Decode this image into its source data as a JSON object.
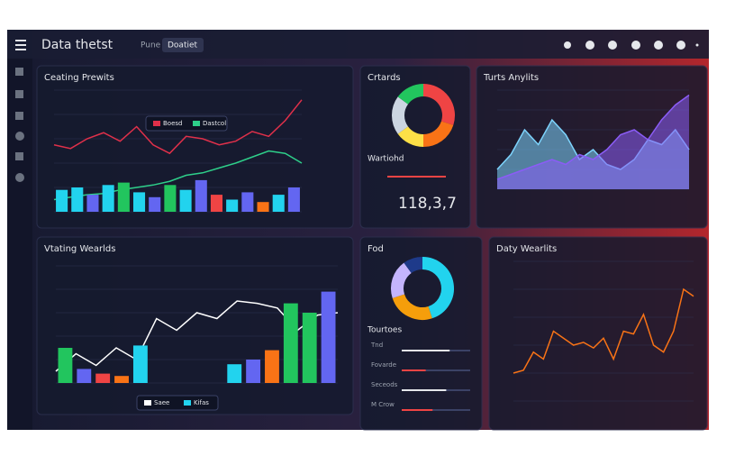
{
  "header": {
    "title": "Data thetst",
    "tabs": [
      "Pune",
      "Doatiet"
    ]
  },
  "panels": [
    {
      "title": "Ceating Prewits",
      "chart": {
        "type": "bar-line",
        "ylim": [
          0,
          100
        ],
        "legend": [
          "Boesd",
          "Dastcol"
        ],
        "series": [
          {
            "name": "Boesd",
            "kind": "line",
            "color": "#e0304a",
            "values": [
              55,
              52,
              60,
              65,
              58,
              70,
              55,
              48,
              62,
              60,
              55,
              58,
              66,
              62,
              75,
              92
            ]
          },
          {
            "name": "Dastcol",
            "kind": "line",
            "color": "#2ecf8a",
            "values": [
              10,
              12,
              14,
              15,
              18,
              20,
              22,
              25,
              30,
              32,
              36,
              40,
              45,
              50,
              48,
              40
            ]
          },
          {
            "kind": "bar",
            "colors": [
              "#22d3ee",
              "#22d3ee",
              "#6366f1",
              "#22d3ee",
              "#22c55e",
              "#22d3ee",
              "#6366f1",
              "#22c55e",
              "#22d3ee",
              "#6366f1",
              "#ef4444",
              "#22d3ee",
              "#6366f1",
              "#f97316",
              "#22d3ee",
              "#6366f1"
            ],
            "values": [
              18,
              20,
              14,
              22,
              24,
              16,
              12,
              22,
              18,
              26,
              14,
              10,
              16,
              8,
              14,
              20
            ]
          }
        ]
      }
    },
    {
      "title": "Crtards",
      "chart": {
        "type": "donut",
        "colors": [
          "#ef4444",
          "#f97316",
          "#fde047",
          "#cbd5e1",
          "#22c55e"
        ],
        "values": [
          30,
          20,
          15,
          20,
          15
        ]
      },
      "subtitle": "Wartiohd",
      "kpi": "118,3,7"
    },
    {
      "title": "Turts Anylits",
      "chart": {
        "type": "area",
        "ylim": [
          0,
          100
        ],
        "series": [
          {
            "color": "#7dd3fc",
            "values": [
              20,
              35,
              60,
              45,
              70,
              55,
              30,
              40,
              25,
              20,
              30,
              50,
              45,
              60,
              40
            ]
          },
          {
            "color": "#8b5cf6",
            "values": [
              10,
              15,
              20,
              25,
              30,
              25,
              35,
              30,
              40,
              55,
              60,
              50,
              70,
              85,
              95
            ]
          }
        ]
      }
    },
    {
      "title": "Vtating Wearlds",
      "chart": {
        "type": "bar-line",
        "ylim": [
          0,
          100
        ],
        "legend": [
          "Saee",
          "Kifas"
        ],
        "series": [
          {
            "name": "Saee",
            "kind": "line",
            "color": "#ffffff",
            "values": [
              10,
              25,
              15,
              30,
              20,
              55,
              45,
              60,
              55,
              70,
              68,
              64,
              45,
              58,
              60
            ]
          },
          {
            "kind": "bar",
            "colors": [
              "#22c55e",
              "#6366f1",
              "#ef4444",
              "#f97316",
              "#22d3ee",
              "#ef4444",
              "#ef4444",
              "#22c55e",
              "#22c55e",
              "#22d3ee",
              "#6366f1",
              "#f97316",
              "#22c55e",
              "#22c55e",
              "#6366f1"
            ],
            "values": [
              30,
              12,
              8,
              6,
              32,
              0,
              0,
              0,
              0,
              16,
              20,
              28,
              68,
              60,
              78
            ]
          }
        ]
      }
    },
    {
      "title": "Fod",
      "chart": {
        "type": "donut",
        "colors": [
          "#22d3ee",
          "#f59e0b",
          "#c4b5fd",
          "#1e3a8a"
        ],
        "values": [
          45,
          25,
          20,
          10
        ]
      },
      "subtitle": "Tourtoes",
      "rows": [
        {
          "label": "Tnd",
          "value": 70
        },
        {
          "label": "Fovarde",
          "value": 35
        },
        {
          "label": "Seceods",
          "value": 65
        },
        {
          "label": "M Crow",
          "value": 45
        }
      ]
    },
    {
      "title": "Daty Wearlits",
      "chart": {
        "type": "line",
        "ylim": [
          0,
          100
        ],
        "color": "#f97316",
        "values": [
          20,
          22,
          35,
          30,
          50,
          45,
          40,
          42,
          38,
          45,
          30,
          50,
          48,
          62,
          40,
          35,
          50,
          80,
          75
        ]
      }
    }
  ]
}
